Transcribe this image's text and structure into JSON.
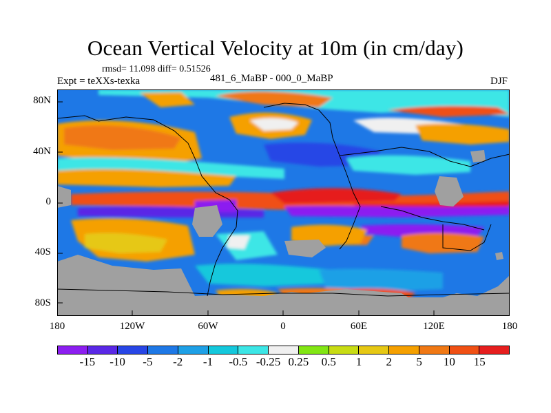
{
  "title": "Ocean Vertical Velocity at 10m (in cm/day)",
  "stats": "rmsd= 11.098 diff= 0.51526",
  "expt_label": "Expt = teXXs-texka",
  "case_label": "481_6_MaBP - 000_0_MaBP",
  "season": "DJF",
  "lat_ticks": [
    "80N",
    "40N",
    "0",
    "40S",
    "80S"
  ],
  "lon_ticks": [
    "180",
    "120W",
    "60W",
    "0",
    "60E",
    "120E",
    "180"
  ],
  "colorbar": {
    "labels": [
      "-15",
      "-10",
      "-5",
      "-2",
      "-1",
      "-0.5",
      "-0.25",
      "0.25",
      "0.5",
      "1",
      "2",
      "5",
      "10",
      "15"
    ],
    "colors": [
      "#8c1ef0",
      "#5a28e6",
      "#2846e6",
      "#1e78e6",
      "#1ea0e6",
      "#14c8dc",
      "#3ce6e6",
      "#f0f0f0",
      "#82e614",
      "#c8dc14",
      "#e6c814",
      "#f5a000",
      "#f07814",
      "#f05014",
      "#e61e1e"
    ]
  },
  "colors": {
    "land": "#a0a0a0",
    "coast": "#000000"
  }
}
